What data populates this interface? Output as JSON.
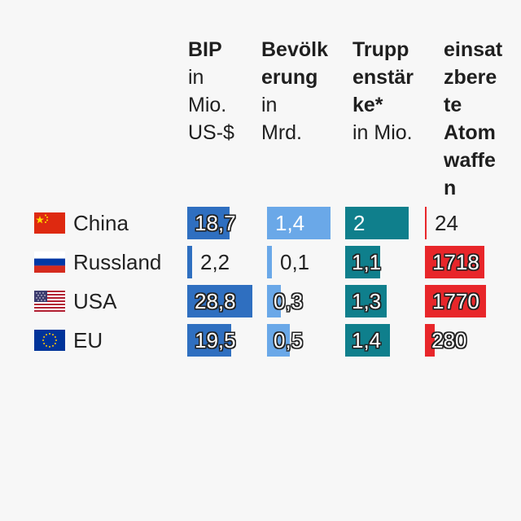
{
  "chart_data": {
    "type": "table",
    "columns": [
      {
        "key": "bip",
        "title": "BIP",
        "subtitle": "in\nMio.\nUS-$",
        "color": "#2f6fc0"
      },
      {
        "key": "bev",
        "title": "Bevölk\nerung",
        "subtitle": "in\nMrd.",
        "color": "#6aa8e8"
      },
      {
        "key": "trupp",
        "title": "Trupp\nenstär\nke*",
        "subtitle": "in Mio.",
        "color": "#0f7f8c"
      },
      {
        "key": "atom",
        "title": "einsat\nzbere\nte\nAtom\nwaffe\nn",
        "subtitle": "",
        "color": "#e8262a"
      }
    ],
    "rows": [
      {
        "country": "China",
        "flag": "flag-china-icon",
        "values": {
          "bip": 18.7,
          "bev": 1.4,
          "trupp": 2.0,
          "atom": 24
        },
        "labels": {
          "bip": "18,7",
          "bev": "1,4",
          "trupp": "2",
          "atom": "24"
        }
      },
      {
        "country": "Russland",
        "flag": "flag-russia-icon",
        "values": {
          "bip": 2.2,
          "bev": 0.1,
          "trupp": 1.1,
          "atom": 1718
        },
        "labels": {
          "bip": "2,2",
          "bev": "0,1",
          "trupp": "1,1",
          "atom": "1718"
        }
      },
      {
        "country": "USA",
        "flag": "flag-usa-icon",
        "values": {
          "bip": 28.8,
          "bev": 0.3,
          "trupp": 1.3,
          "atom": 1770
        },
        "labels": {
          "bip": "28,8",
          "bev": "0,3",
          "trupp": "1,3",
          "atom": "1770"
        }
      },
      {
        "country": "EU",
        "flag": "flag-eu-icon",
        "values": {
          "bip": 19.5,
          "bev": 0.5,
          "trupp": 1.4,
          "atom": 280
        },
        "labels": {
          "bip": "19,5",
          "bev": "0,5",
          "trupp": "1,4",
          "atom": "280"
        }
      }
    ]
  }
}
